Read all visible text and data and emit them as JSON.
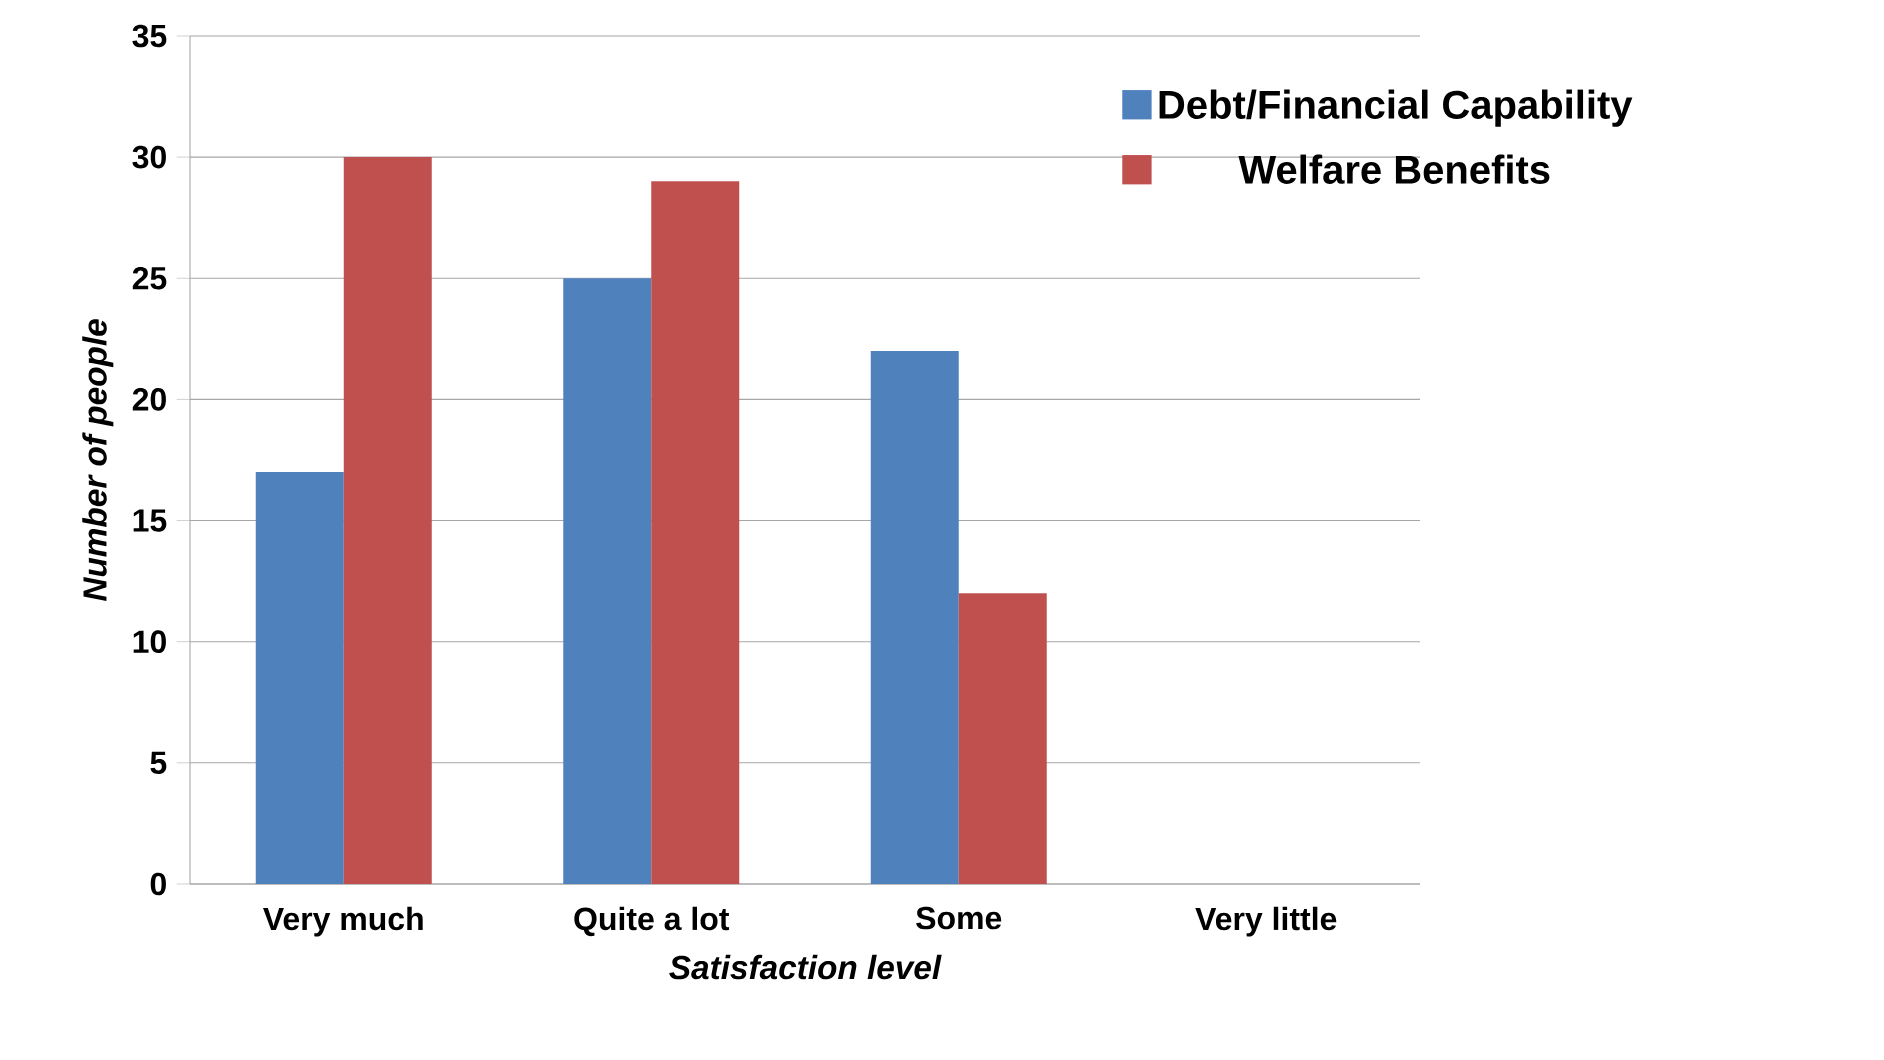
{
  "chart_data": {
    "type": "bar",
    "xlabel": "Satisfaction level",
    "ylabel": "Number of people",
    "categories": [
      "Very much",
      "Quite a lot",
      "Some",
      "Very little"
    ],
    "series": [
      {
        "name": "Debt/Financial Capability",
        "color": "#4f81bd",
        "values": [
          17,
          25,
          22,
          0
        ]
      },
      {
        "name": "Welfare Benefits",
        "color": "#c0504d",
        "values": [
          30,
          29,
          12,
          0
        ]
      }
    ],
    "ylim": [
      0,
      35
    ],
    "yticks": [
      0,
      5,
      10,
      15,
      20,
      25,
      30,
      35
    ],
    "grid": "y",
    "legend": "top right"
  }
}
